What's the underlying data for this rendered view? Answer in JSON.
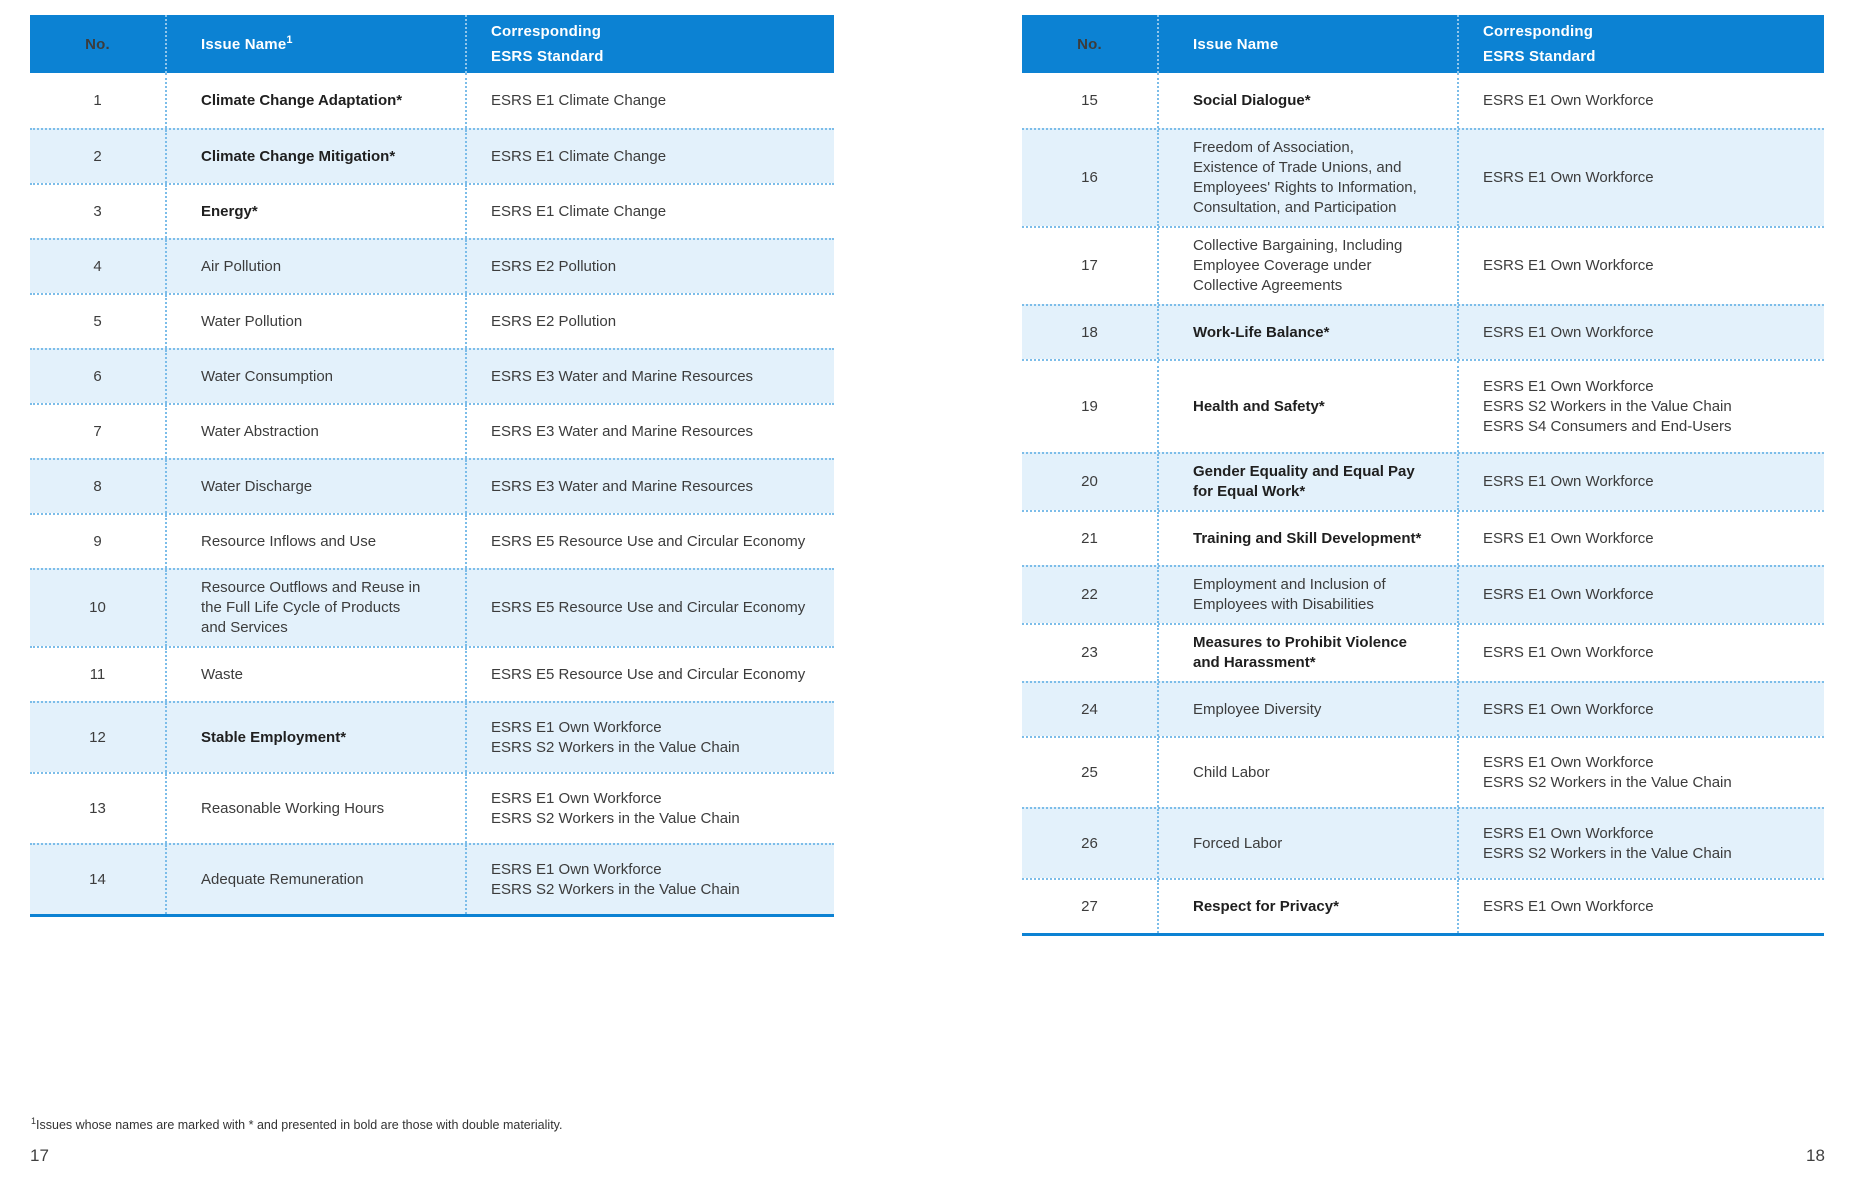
{
  "colors": {
    "accent": "#0c82d3",
    "row_alt_bg": "#e3f1fb",
    "dotted_border": "#7cbde9"
  },
  "page": {
    "footnote_superscript": "1",
    "footnote": "Issues whose names are marked with * and presented in bold are those with double materiality.",
    "left_page_number": "17",
    "right_page_number": "18"
  },
  "left_table": {
    "headers": {
      "no": "No.",
      "issue": "Issue Name",
      "issue_superscript": "1",
      "esrs_line1": "Corresponding",
      "esrs_line2": "ESRS Standard"
    },
    "rows": [
      {
        "no": "1",
        "issue_lines": [
          "Climate Change Adaptation*"
        ],
        "bold": true,
        "esrs_lines": [
          "ESRS E1 Climate Change"
        ],
        "shaded": false
      },
      {
        "no": "2",
        "issue_lines": [
          "Climate Change Mitigation*"
        ],
        "bold": true,
        "esrs_lines": [
          "ESRS E1 Climate Change"
        ],
        "shaded": true
      },
      {
        "no": "3",
        "issue_lines": [
          "Energy*"
        ],
        "bold": true,
        "esrs_lines": [
          "ESRS E1 Climate Change"
        ],
        "shaded": false
      },
      {
        "no": "4",
        "issue_lines": [
          "Air Pollution"
        ],
        "bold": false,
        "esrs_lines": [
          "ESRS E2 Pollution"
        ],
        "shaded": true
      },
      {
        "no": "5",
        "issue_lines": [
          "Water Pollution"
        ],
        "bold": false,
        "esrs_lines": [
          "ESRS E2 Pollution"
        ],
        "shaded": false
      },
      {
        "no": "6",
        "issue_lines": [
          "Water Consumption"
        ],
        "bold": false,
        "esrs_lines": [
          "ESRS E3 Water and Marine Resources"
        ],
        "shaded": true
      },
      {
        "no": "7",
        "issue_lines": [
          "Water Abstraction"
        ],
        "bold": false,
        "esrs_lines": [
          "ESRS E3 Water and Marine Resources"
        ],
        "shaded": false
      },
      {
        "no": "8",
        "issue_lines": [
          "Water Discharge"
        ],
        "bold": false,
        "esrs_lines": [
          "ESRS E3 Water and Marine Resources"
        ],
        "shaded": true
      },
      {
        "no": "9",
        "issue_lines": [
          "Resource Inflows and Use"
        ],
        "bold": false,
        "esrs_lines": [
          "ESRS E5 Resource Use and Circular Economy"
        ],
        "shaded": false
      },
      {
        "no": "10",
        "issue_lines": [
          "Resource Outflows and Reuse in",
          "the Full Life Cycle of Products",
          "and Services"
        ],
        "bold": false,
        "esrs_lines": [
          "ESRS E5 Resource Use and Circular Economy"
        ],
        "shaded": true
      },
      {
        "no": "11",
        "issue_lines": [
          "Waste"
        ],
        "bold": false,
        "esrs_lines": [
          "ESRS E5 Resource Use and Circular Economy"
        ],
        "shaded": false
      },
      {
        "no": "12",
        "issue_lines": [
          "Stable Employment*"
        ],
        "bold": true,
        "esrs_lines": [
          "ESRS E1 Own Workforce",
          "ESRS S2 Workers in the Value Chain"
        ],
        "shaded": true
      },
      {
        "no": "13",
        "issue_lines": [
          "Reasonable Working Hours"
        ],
        "bold": false,
        "esrs_lines": [
          "ESRS E1 Own Workforce",
          "ESRS S2 Workers in the Value Chain"
        ],
        "shaded": false
      },
      {
        "no": "14",
        "issue_lines": [
          "Adequate Remuneration"
        ],
        "bold": false,
        "esrs_lines": [
          "ESRS E1 Own Workforce",
          "ESRS S2 Workers in the Value Chain"
        ],
        "shaded": true
      }
    ]
  },
  "right_table": {
    "headers": {
      "no": "No.",
      "issue": "Issue Name",
      "issue_superscript": "",
      "esrs_line1": "Corresponding",
      "esrs_line2": "ESRS Standard"
    },
    "rows": [
      {
        "no": "15",
        "issue_lines": [
          "Social Dialogue*"
        ],
        "bold": true,
        "esrs_lines": [
          "ESRS E1 Own Workforce"
        ],
        "shaded": false
      },
      {
        "no": "16",
        "issue_lines": [
          "Freedom of Association,",
          "Existence of Trade Unions, and",
          "Employees' Rights to Information,",
          "Consultation, and Participation"
        ],
        "bold": false,
        "esrs_lines": [
          "ESRS E1 Own Workforce"
        ],
        "shaded": true
      },
      {
        "no": "17",
        "issue_lines": [
          "Collective Bargaining, Including",
          "Employee Coverage under",
          "Collective Agreements"
        ],
        "bold": false,
        "esrs_lines": [
          "ESRS E1 Own Workforce"
        ],
        "shaded": false
      },
      {
        "no": "18",
        "issue_lines": [
          "Work-Life Balance*"
        ],
        "bold": true,
        "esrs_lines": [
          "ESRS E1 Own Workforce"
        ],
        "shaded": true
      },
      {
        "no": "19",
        "issue_lines": [
          "Health and Safety*"
        ],
        "bold": true,
        "esrs_lines": [
          "ESRS E1 Own Workforce",
          "ESRS S2 Workers in the Value Chain",
          "ESRS S4 Consumers and End-Users"
        ],
        "shaded": false
      },
      {
        "no": "20",
        "issue_lines": [
          "Gender Equality and Equal Pay",
          "for Equal Work*"
        ],
        "bold": true,
        "esrs_lines": [
          "ESRS E1 Own Workforce"
        ],
        "shaded": true
      },
      {
        "no": "21",
        "issue_lines": [
          "Training and Skill Development*"
        ],
        "bold": true,
        "esrs_lines": [
          "ESRS E1 Own Workforce"
        ],
        "shaded": false
      },
      {
        "no": "22",
        "issue_lines": [
          "Employment and Inclusion of",
          "Employees with Disabilities"
        ],
        "bold": false,
        "esrs_lines": [
          "ESRS E1 Own Workforce"
        ],
        "shaded": true
      },
      {
        "no": "23",
        "issue_lines": [
          "Measures to Prohibit Violence",
          "and Harassment*"
        ],
        "bold": true,
        "esrs_lines": [
          "ESRS E1 Own Workforce"
        ],
        "shaded": false
      },
      {
        "no": "24",
        "issue_lines": [
          "Employee Diversity"
        ],
        "bold": false,
        "esrs_lines": [
          "ESRS E1 Own Workforce"
        ],
        "shaded": true
      },
      {
        "no": "25",
        "issue_lines": [
          "Child Labor"
        ],
        "bold": false,
        "esrs_lines": [
          "ESRS E1 Own Workforce",
          "ESRS S2 Workers in the Value Chain"
        ],
        "shaded": false
      },
      {
        "no": "26",
        "issue_lines": [
          "Forced Labor"
        ],
        "bold": false,
        "esrs_lines": [
          "ESRS E1 Own Workforce",
          "ESRS S2 Workers in the Value Chain"
        ],
        "shaded": true
      },
      {
        "no": "27",
        "issue_lines": [
          "Respect for Privacy*"
        ],
        "bold": true,
        "esrs_lines": [
          "ESRS E1 Own Workforce"
        ],
        "shaded": false
      }
    ]
  }
}
